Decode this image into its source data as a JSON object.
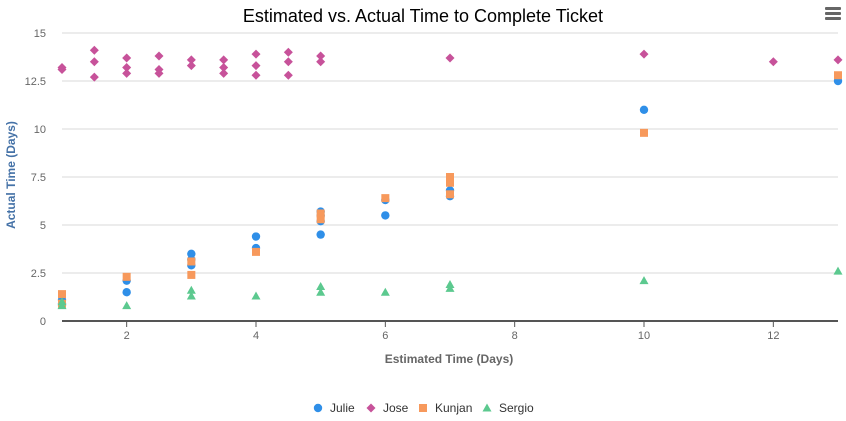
{
  "menu_icon": "hamburger-menu-icon",
  "chart_data": {
    "type": "scatter",
    "title": "Estimated vs. Actual Time to Complete Ticket",
    "xlabel": "Estimated Time (Days)",
    "ylabel": "Actual Time (Days)",
    "xlim": [
      1,
      13
    ],
    "ylim": [
      0,
      15
    ],
    "x_ticks": [
      2,
      4,
      6,
      8,
      10,
      12
    ],
    "y_ticks": [
      0,
      2.5,
      5,
      7.5,
      10,
      12.5,
      15
    ],
    "y_tick_labels": [
      "0",
      "2.5",
      "5",
      "7.5",
      "10",
      "12.5",
      "15"
    ],
    "grid": true,
    "legend_position": "bottom",
    "series": [
      {
        "name": "Julie",
        "color": "#2f8fe8",
        "marker": "circle",
        "points": [
          [
            1,
            1.1
          ],
          [
            1,
            0.9
          ],
          [
            2,
            2.1
          ],
          [
            2,
            1.5
          ],
          [
            3,
            3.5
          ],
          [
            3,
            3.2
          ],
          [
            3,
            2.9
          ],
          [
            4,
            4.4
          ],
          [
            4,
            3.8
          ],
          [
            5,
            5.7
          ],
          [
            5,
            5.5
          ],
          [
            5,
            5.2
          ],
          [
            5,
            4.5
          ],
          [
            6,
            6.3
          ],
          [
            6,
            5.5
          ],
          [
            7,
            6.8
          ],
          [
            7,
            6.5
          ],
          [
            10,
            11.0
          ],
          [
            13,
            12.5
          ]
        ]
      },
      {
        "name": "Jose",
        "color": "#c7529a",
        "marker": "diamond",
        "points": [
          [
            1,
            13.2
          ],
          [
            1,
            13.1
          ],
          [
            1.5,
            14.1
          ],
          [
            1.5,
            13.5
          ],
          [
            1.5,
            12.7
          ],
          [
            2,
            13.7
          ],
          [
            2,
            13.2
          ],
          [
            2,
            12.9
          ],
          [
            2.5,
            13.8
          ],
          [
            2.5,
            13.1
          ],
          [
            2.5,
            12.9
          ],
          [
            3,
            13.6
          ],
          [
            3,
            13.3
          ],
          [
            3.5,
            13.6
          ],
          [
            3.5,
            13.2
          ],
          [
            3.5,
            12.9
          ],
          [
            4,
            13.9
          ],
          [
            4,
            13.3
          ],
          [
            4,
            12.8
          ],
          [
            4.5,
            14.0
          ],
          [
            4.5,
            13.5
          ],
          [
            4.5,
            12.8
          ],
          [
            5,
            13.8
          ],
          [
            5,
            13.5
          ],
          [
            7,
            13.7
          ],
          [
            10,
            13.9
          ],
          [
            12,
            13.5
          ],
          [
            13,
            13.6
          ]
        ]
      },
      {
        "name": "Kunjan",
        "color": "#f7995c",
        "marker": "square",
        "points": [
          [
            1,
            1.4
          ],
          [
            1,
            0.9
          ],
          [
            2,
            2.3
          ],
          [
            3,
            3.1
          ],
          [
            3,
            2.4
          ],
          [
            4,
            3.6
          ],
          [
            5,
            5.6
          ],
          [
            5,
            5.3
          ],
          [
            6,
            6.4
          ],
          [
            7,
            7.5
          ],
          [
            7,
            7.2
          ],
          [
            7,
            6.6
          ],
          [
            10,
            9.8
          ],
          [
            13,
            12.8
          ]
        ]
      },
      {
        "name": "Sergio",
        "color": "#5cc98f",
        "marker": "triangle",
        "points": [
          [
            1,
            1.0
          ],
          [
            1,
            0.8
          ],
          [
            2,
            0.8
          ],
          [
            3,
            1.6
          ],
          [
            3,
            1.3
          ],
          [
            4,
            1.3
          ],
          [
            5,
            1.8
          ],
          [
            5,
            1.5
          ],
          [
            6,
            1.5
          ],
          [
            7,
            1.9
          ],
          [
            7,
            1.7
          ],
          [
            10,
            2.1
          ],
          [
            13,
            2.6
          ]
        ]
      }
    ]
  }
}
